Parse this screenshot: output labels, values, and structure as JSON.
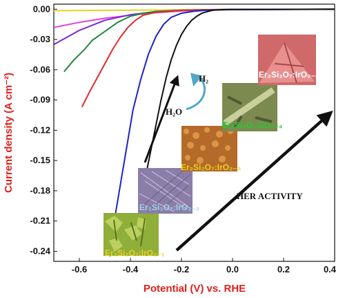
{
  "chart_data": {
    "type": "line",
    "xlabel": "Potential (V) vs. RHE",
    "ylabel": "Current density (A cm⁻²)",
    "xlim": [
      -0.7,
      0.4
    ],
    "ylim": [
      -0.25,
      0.005
    ],
    "x_ticks": [
      "-0.6",
      "-0.4",
      "-0.2",
      "0.0",
      "0.2",
      "0.4"
    ],
    "x_tick_values": [
      -0.6,
      -0.4,
      -0.2,
      0.0,
      0.2,
      0.4
    ],
    "y_ticks": [
      "0.00",
      "-0.03",
      "-0.06",
      "-0.09",
      "-0.12",
      "-0.15",
      "-0.18",
      "-0.21",
      "-0.24"
    ],
    "y_tick_values": [
      0.0,
      -0.03,
      -0.06,
      -0.09,
      -0.12,
      -0.15,
      -0.18,
      -0.21,
      -0.24
    ],
    "grid": false,
    "series": [
      {
        "color": "#e8d220",
        "points": [
          [
            -0.7,
            -0.0015
          ],
          [
            -0.5,
            -0.0012
          ],
          [
            -0.3,
            -0.0008
          ],
          [
            -0.1,
            -0.0004
          ],
          [
            0.1,
            -0.0002
          ],
          [
            0.4,
            -0.0001
          ]
        ]
      },
      {
        "color": "#e040e0",
        "points": [
          [
            -0.7,
            -0.018
          ],
          [
            -0.6,
            -0.013
          ],
          [
            -0.5,
            -0.009
          ],
          [
            -0.4,
            -0.006
          ],
          [
            -0.3,
            -0.0035
          ],
          [
            -0.2,
            -0.0018
          ],
          [
            -0.1,
            -0.0008
          ],
          [
            0.0,
            -0.0004
          ],
          [
            0.2,
            -0.0002
          ],
          [
            0.4,
            -0.0001
          ]
        ]
      },
      {
        "color": "#7a28d8",
        "points": [
          [
            -0.7,
            -0.035
          ],
          [
            -0.65,
            -0.028
          ],
          [
            -0.6,
            -0.021
          ],
          [
            -0.55,
            -0.016
          ],
          [
            -0.5,
            -0.011
          ],
          [
            -0.4,
            -0.0055
          ],
          [
            -0.3,
            -0.0025
          ],
          [
            -0.2,
            -0.0012
          ],
          [
            -0.1,
            -0.0006
          ],
          [
            0.0,
            -0.0003
          ],
          [
            0.4,
            -0.0001
          ]
        ]
      },
      {
        "color": "#1f8a3c",
        "points": [
          [
            -0.66,
            -0.062
          ],
          [
            -0.62,
            -0.05
          ],
          [
            -0.58,
            -0.04
          ],
          [
            -0.55,
            -0.031
          ],
          [
            -0.5,
            -0.022
          ],
          [
            -0.45,
            -0.013
          ],
          [
            -0.4,
            -0.007
          ],
          [
            -0.35,
            -0.004
          ],
          [
            -0.3,
            -0.0022
          ],
          [
            -0.2,
            -0.001
          ],
          [
            -0.1,
            -0.0005
          ],
          [
            0.0,
            -0.0003
          ],
          [
            0.4,
            -0.0001
          ]
        ]
      },
      {
        "color": "#e02a2a",
        "points": [
          [
            -0.59,
            -0.097
          ],
          [
            -0.56,
            -0.082
          ],
          [
            -0.53,
            -0.068
          ],
          [
            -0.5,
            -0.054
          ],
          [
            -0.47,
            -0.04
          ],
          [
            -0.44,
            -0.028
          ],
          [
            -0.41,
            -0.018
          ],
          [
            -0.38,
            -0.011
          ],
          [
            -0.35,
            -0.006
          ],
          [
            -0.3,
            -0.003
          ],
          [
            -0.2,
            -0.0012
          ],
          [
            -0.1,
            -0.0005
          ],
          [
            0.0,
            -0.0003
          ],
          [
            0.4,
            -0.0001
          ]
        ]
      },
      {
        "color": "#1c22c8",
        "points": [
          [
            -0.48,
            -0.245
          ],
          [
            -0.47,
            -0.22
          ],
          [
            -0.45,
            -0.19
          ],
          [
            -0.43,
            -0.16
          ],
          [
            -0.41,
            -0.13
          ],
          [
            -0.39,
            -0.1
          ],
          [
            -0.36,
            -0.07
          ],
          [
            -0.33,
            -0.045
          ],
          [
            -0.3,
            -0.027
          ],
          [
            -0.27,
            -0.015
          ],
          [
            -0.24,
            -0.008
          ],
          [
            -0.2,
            -0.004
          ],
          [
            -0.15,
            -0.002
          ],
          [
            -0.1,
            -0.001
          ],
          [
            0.0,
            -0.0004
          ],
          [
            0.4,
            -0.0001
          ]
        ]
      },
      {
        "color": "#111111",
        "points": [
          [
            -0.36,
            -0.19
          ],
          [
            -0.34,
            -0.165
          ],
          [
            -0.32,
            -0.14
          ],
          [
            -0.3,
            -0.115
          ],
          [
            -0.28,
            -0.09
          ],
          [
            -0.26,
            -0.068
          ],
          [
            -0.24,
            -0.05
          ],
          [
            -0.22,
            -0.036
          ],
          [
            -0.2,
            -0.025
          ],
          [
            -0.18,
            -0.017
          ],
          [
            -0.16,
            -0.011
          ],
          [
            -0.14,
            -0.007
          ],
          [
            -0.12,
            -0.004
          ],
          [
            -0.1,
            -0.0025
          ],
          [
            -0.08,
            -0.0012
          ],
          [
            -0.05,
            -0.0005
          ],
          [
            0.0,
            -0.0002
          ],
          [
            0.4,
            -0.0001
          ]
        ]
      }
    ],
    "annotations": {
      "samples": [
        {
          "label": "Er₂Si₂O₇:IrO₂₋₁",
          "color": "#e8d020",
          "texture_color": "#8fae3a"
        },
        {
          "label": "Er₂Si₂O₇:IrO₂₋₂",
          "color": "#9fd3e6",
          "texture_color": "#8a7ea8"
        },
        {
          "label": "Er₂Si₂O₇:IrO₂₋₃",
          "color": "#e8d020",
          "texture_color": "#b46a28"
        },
        {
          "label": "Er₂Si₂O₇:IrO₂₋₄",
          "color": "#22cc33",
          "texture_color": "#7c8a50"
        },
        {
          "label": "Er₂Si₂O₇:IrO₂₋₅",
          "color": "#ffffff",
          "texture_color": "#d06a6a"
        }
      ],
      "h2o": "H₂O",
      "h2": "H₂",
      "activity": "HER ACTIVITY"
    }
  }
}
